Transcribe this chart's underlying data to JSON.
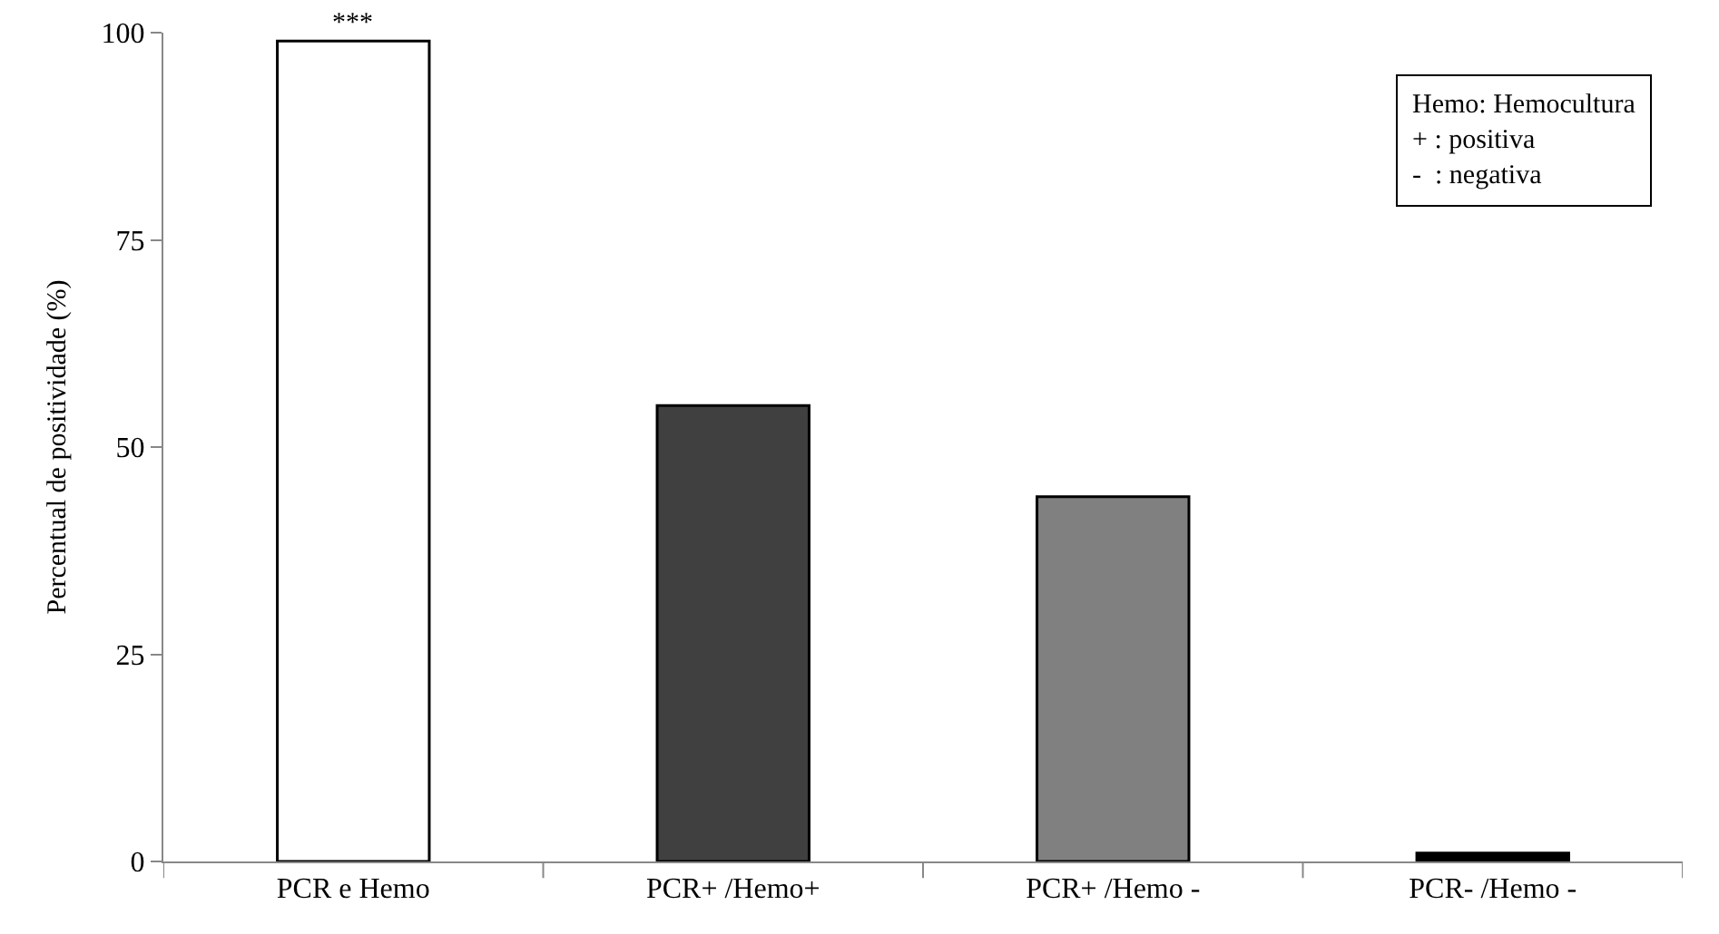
{
  "chart_data": {
    "type": "bar",
    "ylabel": "Percentual de positividade (%)",
    "categories": [
      "PCR e Hemo",
      "PCR+ /Hemo+",
      "PCR+ /Hemo -",
      "PCR- /Hemo -"
    ],
    "values": [
      99,
      55,
      44,
      1
    ],
    "colors": [
      "#ffffff",
      "#404040",
      "#808080",
      "#000000"
    ],
    "ylim": [
      0,
      100
    ],
    "yticks": [
      0,
      25,
      50,
      75,
      100
    ],
    "annotations": [
      {
        "text": "***",
        "x": "PCR e Hemo",
        "y": 99
      },
      "Hemo: Hemocultura\n+ : positiva\n-  : negativa"
    ]
  }
}
